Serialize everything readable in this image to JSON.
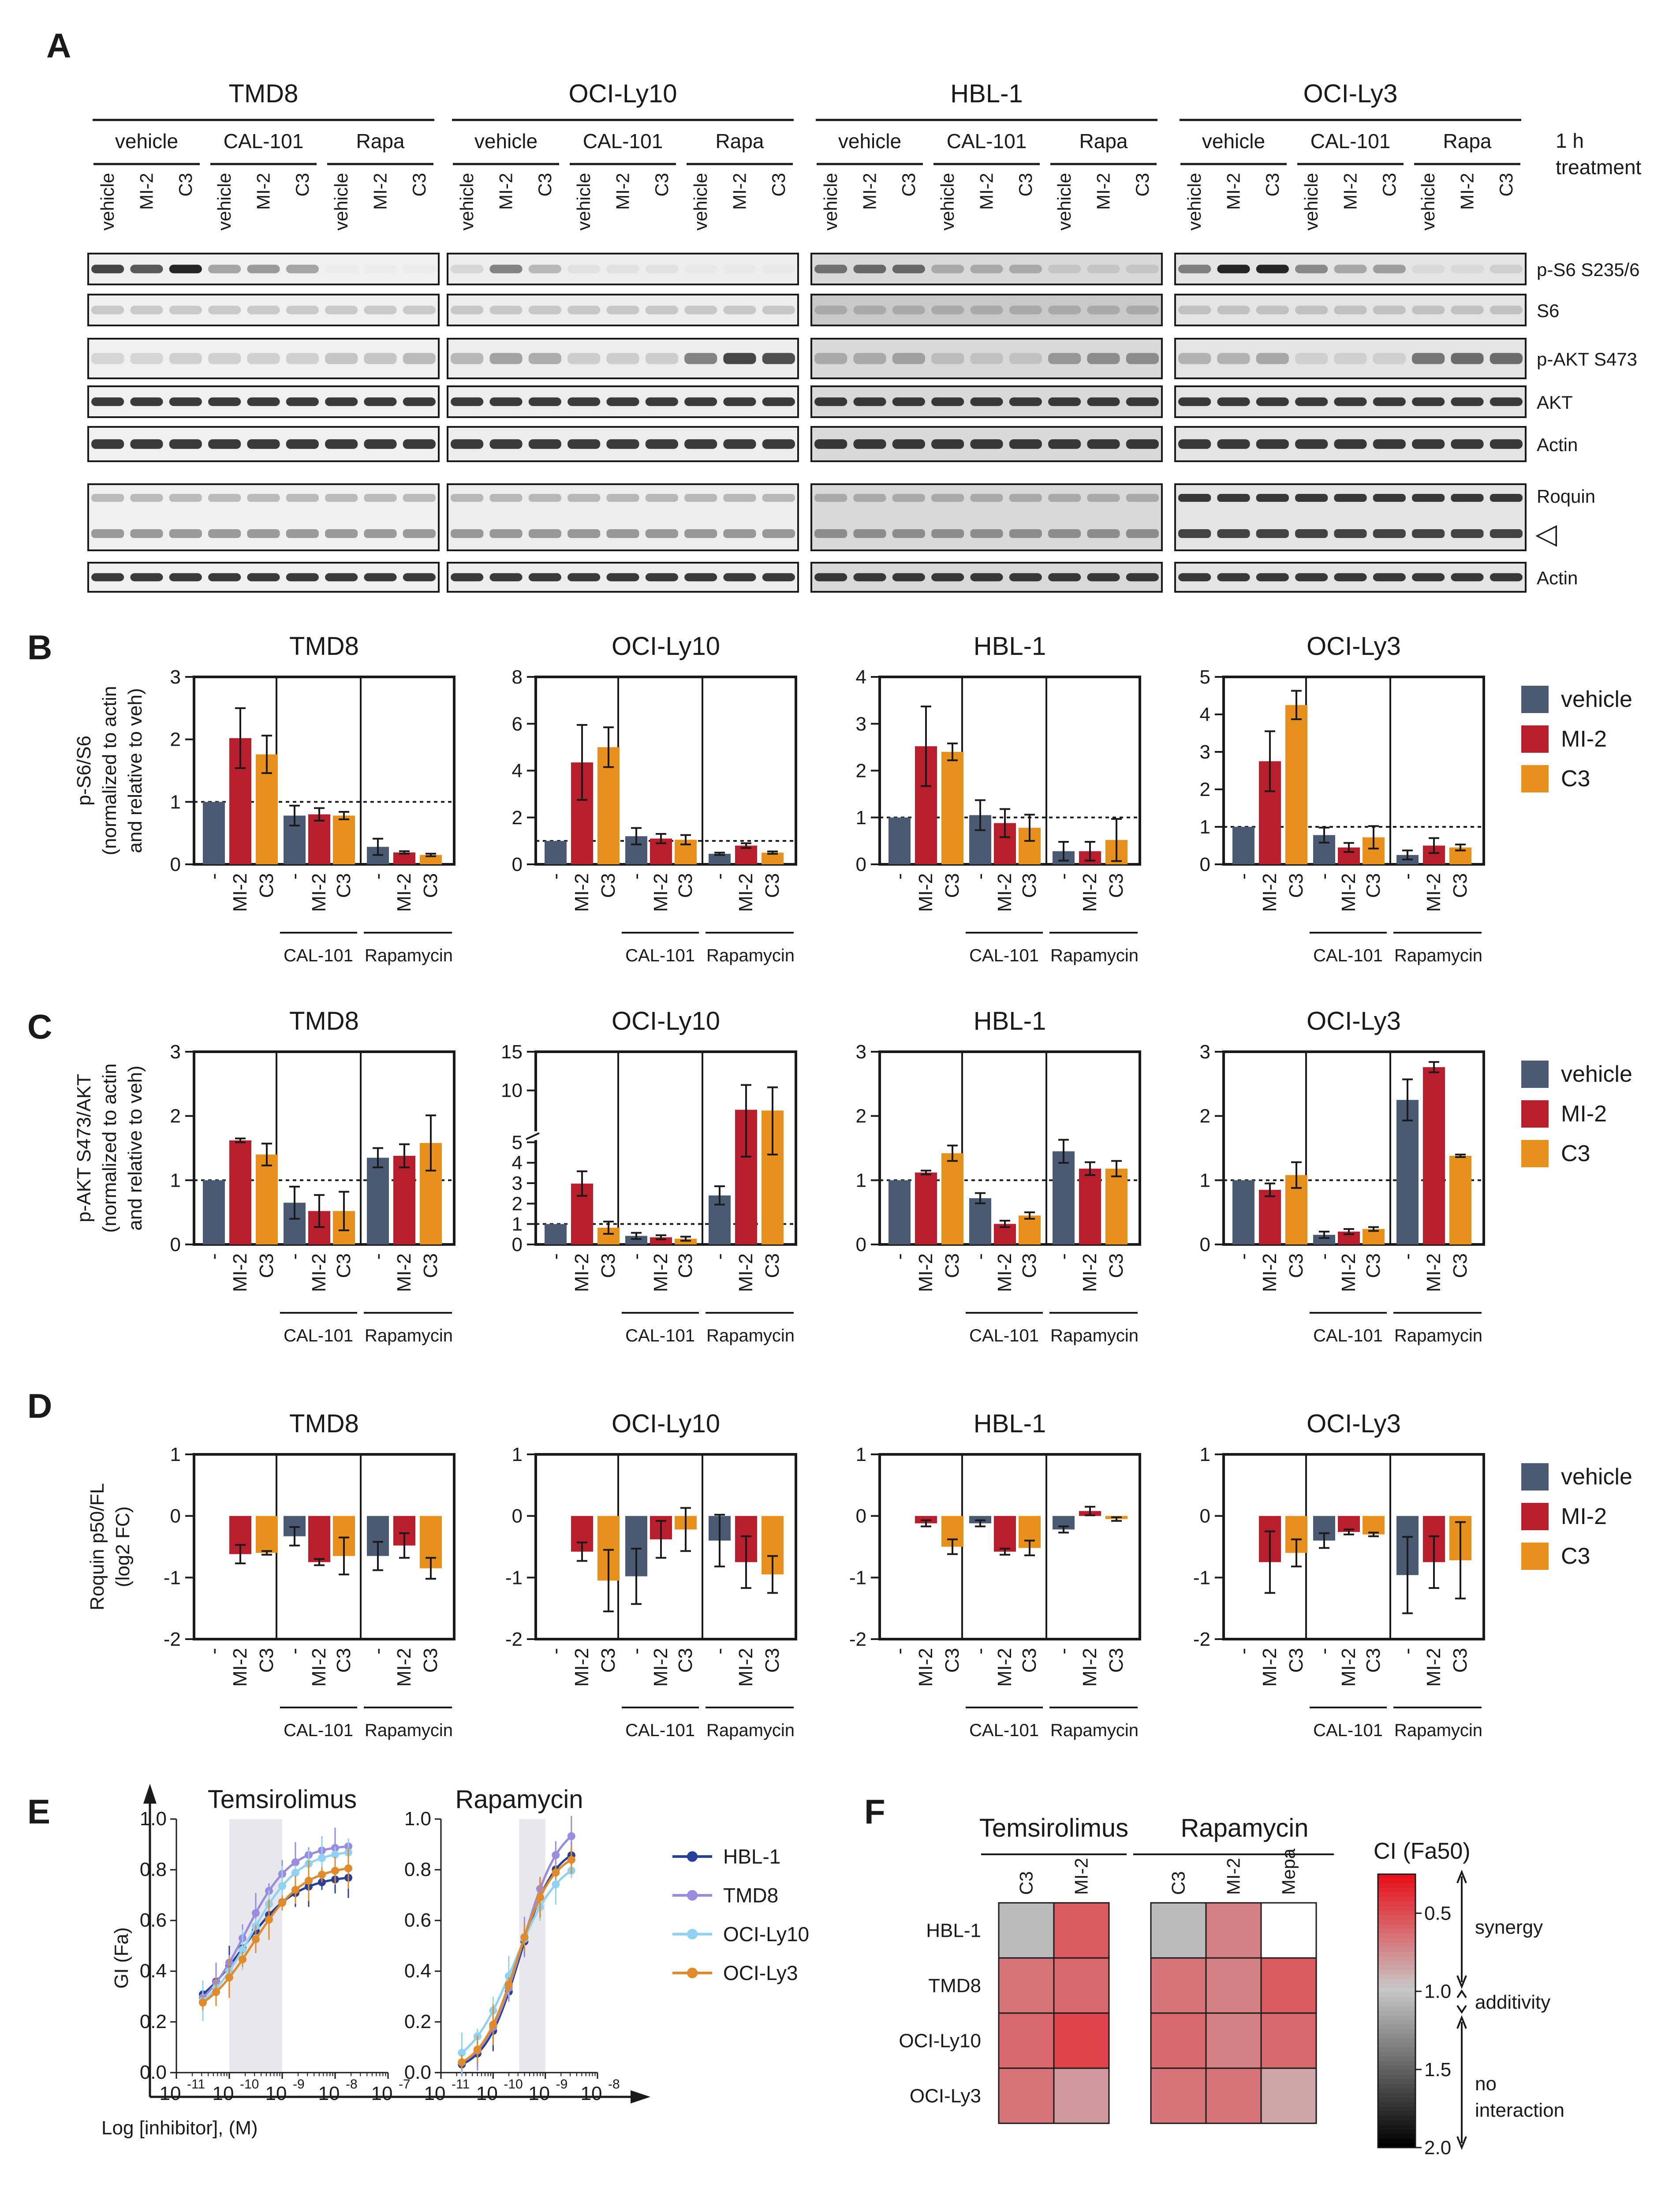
{
  "panel_labels": [
    "A",
    "B",
    "C",
    "D",
    "E",
    "F"
  ],
  "colors": {
    "vehicle": "#4a5a72",
    "MI-2": "#b81e2c",
    "C3": "#e8901c",
    "CAL-101": "#5bbde4",
    "Rapa": "#6cc23c"
  },
  "panel_a": {
    "cell_lines": [
      "TMD8",
      "OCI-Ly10",
      "HBL-1",
      "OCI-Ly3"
    ],
    "treatments": [
      "vehicle",
      "CAL-101",
      "Rapa"
    ],
    "lanes": [
      "vehicle",
      "MI-2",
      "C3"
    ],
    "treatment_note": [
      "1 h",
      "treatment"
    ],
    "blots": [
      "p-S6 S235/6",
      "S6",
      "p-AKT S473",
      "AKT",
      "Actin",
      "Roquin",
      "Actin"
    ],
    "arrow_symbol": "◁"
  },
  "bar_x_labels": [
    "-",
    "MI-2",
    "C3"
  ],
  "bar_groups": [
    "CAL-101",
    "Rapamycin"
  ],
  "legend_bars": [
    "vehicle",
    "MI-2",
    "C3"
  ],
  "chart_data": [
    {
      "panel": "B",
      "type": "bar",
      "ylabel": [
        "p-S6/S6",
        "(normalized to actin",
        "and relative to veh)"
      ],
      "reference_line": 1,
      "plots": [
        {
          "title": "TMD8",
          "ylim": [
            0,
            3
          ],
          "yticks": [
            "0",
            "1",
            "2",
            "3"
          ],
          "values": [
            1.0,
            2.02,
            1.76,
            0.78,
            0.8,
            0.78,
            0.28,
            0.19,
            0.15
          ],
          "errors": [
            0,
            0.48,
            0.3,
            0.16,
            0.1,
            0.06,
            0.13,
            0.02,
            0.02
          ]
        },
        {
          "title": "OCI-Ly10",
          "ylim": [
            0,
            8
          ],
          "yticks": [
            "0",
            "2",
            "4",
            "6",
            "8"
          ],
          "values": [
            1.0,
            4.35,
            5.0,
            1.2,
            1.1,
            1.05,
            0.45,
            0.8,
            0.5
          ],
          "errors": [
            0,
            1.6,
            0.85,
            0.35,
            0.2,
            0.2,
            0.05,
            0.1,
            0.05
          ]
        },
        {
          "title": "HBL-1",
          "ylim": [
            0,
            4
          ],
          "yticks": [
            "0",
            "1",
            "2",
            "3",
            "4"
          ],
          "values": [
            1.0,
            2.52,
            2.4,
            1.05,
            0.88,
            0.78,
            0.28,
            0.28,
            0.52
          ],
          "errors": [
            0,
            0.85,
            0.18,
            0.32,
            0.3,
            0.28,
            0.2,
            0.2,
            0.45
          ]
        },
        {
          "title": "OCI-Ly3",
          "ylim": [
            0,
            5
          ],
          "yticks": [
            "0",
            "1",
            "2",
            "3",
            "4",
            "5"
          ],
          "values": [
            1.0,
            2.75,
            4.25,
            0.78,
            0.45,
            0.72,
            0.25,
            0.5,
            0.45
          ],
          "errors": [
            0,
            0.8,
            0.38,
            0.2,
            0.12,
            0.3,
            0.12,
            0.2,
            0.08
          ]
        }
      ]
    },
    {
      "panel": "C",
      "type": "bar",
      "ylabel": [
        "p-AKT S473/AKT",
        "(normalized to actin",
        "and relative to veh)"
      ],
      "reference_line": 1,
      "plots": [
        {
          "title": "TMD8",
          "ylim": [
            0,
            3
          ],
          "yticks": [
            "0",
            "1",
            "2",
            "3"
          ],
          "values": [
            1.0,
            1.62,
            1.4,
            0.65,
            0.52,
            0.52,
            1.35,
            1.38,
            1.58
          ],
          "errors": [
            0,
            0.03,
            0.17,
            0.25,
            0.25,
            0.3,
            0.15,
            0.18,
            0.43
          ]
        },
        {
          "title": "OCI-Ly10",
          "ylim": [
            0,
            15
          ],
          "broken_axis": true,
          "yticks": [
            "0",
            "1",
            "2",
            "3",
            "4",
            "5",
            "10",
            "15"
          ],
          "values": [
            1.0,
            2.98,
            0.82,
            0.42,
            0.35,
            0.28,
            2.4,
            7.5,
            7.4
          ],
          "errors": [
            0,
            0.6,
            0.3,
            0.15,
            0.1,
            0.1,
            0.45,
            3.2,
            3.0
          ]
        },
        {
          "title": "HBL-1",
          "ylim": [
            0,
            3
          ],
          "yticks": [
            "0",
            "1",
            "2",
            "3"
          ],
          "values": [
            1.0,
            1.12,
            1.42,
            0.72,
            0.32,
            0.45,
            1.45,
            1.18,
            1.18
          ],
          "errors": [
            0,
            0.03,
            0.12,
            0.08,
            0.05,
            0.05,
            0.18,
            0.1,
            0.12
          ]
        },
        {
          "title": "OCI-Ly3",
          "ylim": [
            0,
            3
          ],
          "yticks": [
            "0",
            "1",
            "2",
            "3"
          ],
          "values": [
            1.0,
            0.85,
            1.08,
            0.15,
            0.2,
            0.24,
            2.25,
            2.76,
            1.38
          ],
          "errors": [
            0,
            0.1,
            0.2,
            0.05,
            0.04,
            0.03,
            0.32,
            0.08,
            0.02
          ]
        }
      ]
    },
    {
      "panel": "D",
      "type": "bar",
      "ylabel": [
        "Roquin p50/FL",
        "(log2 FC)"
      ],
      "reference_line": null,
      "plots": [
        {
          "title": "TMD8",
          "ylim": [
            -2,
            1
          ],
          "yticks": [
            "-2",
            "-1",
            "0",
            "1"
          ],
          "values": [
            0,
            -0.62,
            -0.6,
            -0.33,
            -0.75,
            -0.65,
            -0.65,
            -0.48,
            -0.85
          ],
          "errors": [
            0,
            0.15,
            0.03,
            0.15,
            0.05,
            0.3,
            0.23,
            0.2,
            0.17
          ]
        },
        {
          "title": "OCI-Ly10",
          "ylim": [
            -2,
            1
          ],
          "yticks": [
            "-2",
            "-1",
            "0",
            "1"
          ],
          "values": [
            0,
            -0.58,
            -1.05,
            -0.98,
            -0.38,
            -0.22,
            -0.4,
            -0.75,
            -0.95
          ],
          "errors": [
            0,
            0.15,
            0.5,
            0.45,
            0.3,
            0.35,
            0.42,
            0.42,
            0.3
          ]
        },
        {
          "title": "HBL-1",
          "ylim": [
            -2,
            1
          ],
          "yticks": [
            "-2",
            "-1",
            "0",
            "1"
          ],
          "values": [
            0,
            -0.12,
            -0.5,
            -0.12,
            -0.58,
            -0.52,
            -0.22,
            0.08,
            -0.05
          ],
          "errors": [
            0,
            0.05,
            0.12,
            0.05,
            0.05,
            0.12,
            0.05,
            0.07,
            0.03
          ]
        },
        {
          "title": "OCI-Ly3",
          "ylim": [
            -2,
            1
          ],
          "yticks": [
            "-2",
            "-1",
            "0",
            "1"
          ],
          "values": [
            0,
            -0.75,
            -0.6,
            -0.4,
            -0.26,
            -0.3,
            -0.96,
            -0.75,
            -0.72
          ],
          "errors": [
            0,
            0.5,
            0.22,
            0.12,
            0.04,
            0.03,
            0.62,
            0.42,
            0.62
          ]
        }
      ]
    },
    {
      "panel": "E",
      "type": "line",
      "ylabel": "GI (Fa)",
      "xlabel": "Log [inhibitor], (M)",
      "yticks": [
        "0.0",
        "0.2",
        "0.4",
        "0.6",
        "0.8",
        "1.0"
      ],
      "legend": [
        "HBL-1",
        "TMD8",
        "OCI-Ly10",
        "OCI-Ly3"
      ],
      "series_colors": [
        "#26409a",
        "#9a8ae0",
        "#8fd2f2",
        "#e08a2a"
      ],
      "plots": [
        {
          "title": "Temsirolimus",
          "xticks": [
            [
              "10",
              "-11"
            ],
            [
              "10",
              "-10"
            ],
            [
              "10",
              "-9"
            ],
            [
              "10",
              "-8"
            ],
            [
              "10",
              "-7"
            ]
          ],
          "xlim": [
            -11,
            -7
          ],
          "shaded": [
            -10,
            -9
          ],
          "series": [
            {
              "name": "HBL-1",
              "top": 0.78,
              "bottom": 0.2,
              "logec50": -9.75,
              "hill": 0.85
            },
            {
              "name": "TMD8",
              "top": 0.9,
              "bottom": 0.2,
              "logec50": -9.7,
              "hill": 1.0
            },
            {
              "name": "OCI-Ly10",
              "top": 0.88,
              "bottom": 0.2,
              "logec50": -9.6,
              "hill": 0.95
            },
            {
              "name": "OCI-Ly3",
              "top": 0.82,
              "bottom": 0.2,
              "logec50": -9.55,
              "hill": 0.9
            }
          ],
          "x_points": [
            -10.5,
            -10.25,
            -10.0,
            -9.75,
            -9.5,
            -9.25,
            -9.0,
            -8.75,
            -8.5,
            -8.25,
            -8.0,
            -7.75
          ]
        },
        {
          "title": "Rapamycin",
          "xticks": [
            [
              "10",
              "-11"
            ],
            [
              "10",
              "-10"
            ],
            [
              "10",
              "-9"
            ],
            [
              "10",
              "-8"
            ]
          ],
          "xlim": [
            -11,
            -8
          ],
          "shaded": [
            -9.5,
            -9
          ],
          "series": [
            {
              "name": "HBL-1",
              "top": 0.9,
              "bottom": 0.0,
              "logec50": -9.5,
              "hill": 1.3
            },
            {
              "name": "TMD8",
              "top": 1.0,
              "bottom": 0.0,
              "logec50": -9.45,
              "hill": 1.2
            },
            {
              "name": "OCI-Ly10",
              "top": 0.86,
              "bottom": 0.0,
              "logec50": -9.6,
              "hill": 1.0
            },
            {
              "name": "OCI-Ly3",
              "top": 0.88,
              "bottom": 0.0,
              "logec50": -9.55,
              "hill": 1.25
            }
          ],
          "x_points": [
            -10.6,
            -10.3,
            -10.0,
            -9.7,
            -9.4,
            -9.1,
            -8.8,
            -8.5
          ]
        }
      ]
    },
    {
      "panel": "F",
      "type": "heatmap",
      "column_groups": [
        {
          "title": "Temsirolimus",
          "columns": [
            "C3",
            "MI-2"
          ]
        },
        {
          "title": "Rapamycin",
          "columns": [
            "C3",
            "MI-2",
            "Mepa"
          ]
        }
      ],
      "rows": [
        "HBL-1",
        "TMD8",
        "OCI-Ly10",
        "OCI-Ly3"
      ],
      "values": [
        [
          1.05,
          0.55,
          1.05,
          0.7,
          null
        ],
        [
          0.65,
          0.6,
          0.65,
          0.7,
          0.55
        ],
        [
          0.6,
          0.45,
          0.6,
          0.7,
          0.6
        ],
        [
          0.65,
          0.8,
          0.65,
          0.65,
          0.85
        ]
      ],
      "colorbar": {
        "title": "CI (Fa50)",
        "range": [
          2.0,
          0.25
        ],
        "ticks": [
          "0.5",
          "1.0",
          "1.5",
          "2.0"
        ],
        "low_color": "#e8101a",
        "mid_color": "#c8c8c8",
        "high_color": "#000000"
      },
      "annotations": [
        "synergy",
        "additivity",
        "no",
        "interaction"
      ]
    }
  ]
}
